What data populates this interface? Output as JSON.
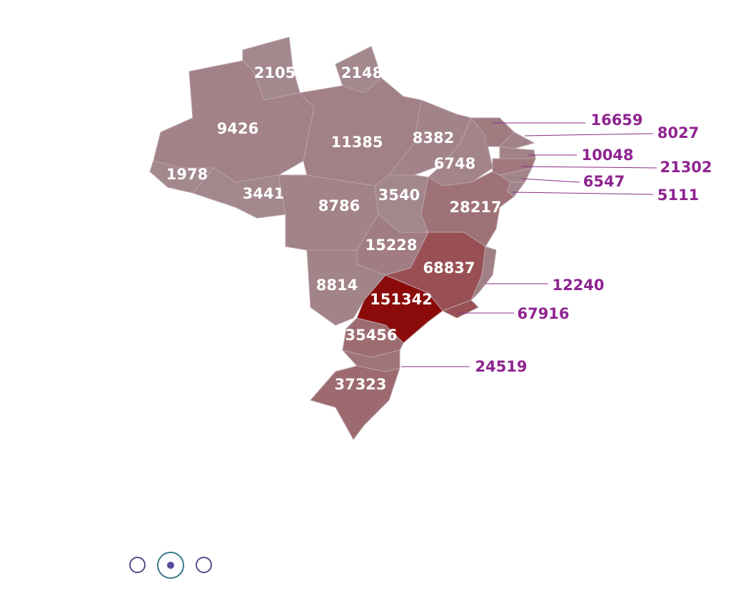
{
  "regions": [
    {
      "value": 2105
    },
    {
      "value": 2148
    },
    {
      "value": 9426
    },
    {
      "value": 11385
    },
    {
      "value": 8382
    },
    {
      "value": 6748
    },
    {
      "value": 1978
    },
    {
      "value": 3441
    },
    {
      "value": 8786
    },
    {
      "value": 3540
    },
    {
      "value": 28217
    },
    {
      "value": 15228
    },
    {
      "value": 68837
    },
    {
      "value": 8814
    },
    {
      "value": 151342
    },
    {
      "value": 35456
    },
    {
      "value": 37323
    },
    {
      "value": 16659
    },
    {
      "value": 8027
    },
    {
      "value": 10048
    },
    {
      "value": 21302
    },
    {
      "value": 6547
    },
    {
      "value": 5111
    },
    {
      "value": 12240
    },
    {
      "value": 67916
    },
    {
      "value": 24519
    }
  ]
}
